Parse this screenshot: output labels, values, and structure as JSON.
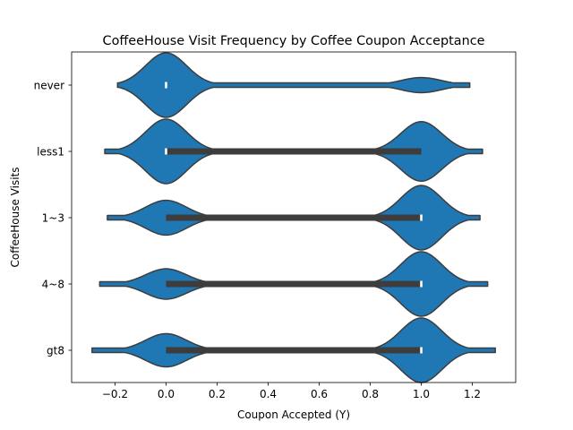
{
  "chart_data": {
    "type": "violin",
    "orientation": "horizontal",
    "title": "CoffeeHouse Visit Frequency by Coffee Coupon Acceptance",
    "xlabel": "Coupon Accepted (Y)",
    "ylabel": "CoffeeHouse Visits",
    "xlim": [
      -0.37,
      1.37
    ],
    "xticks": [
      -0.2,
      0.0,
      0.2,
      0.4,
      0.6,
      0.8,
      1.0,
      1.2
    ],
    "xtick_labels": [
      "−0.2",
      "0.0",
      "0.2",
      "0.4",
      "0.6",
      "0.8",
      "1.0",
      "1.2"
    ],
    "grid": false,
    "fill_color": "#1f77b4",
    "edge_color": "#3d3d3d",
    "categories": [
      "never",
      "less1",
      "1~3",
      "4~8",
      "gt8"
    ],
    "series": [
      {
        "category": "never",
        "q1": 0,
        "median": 0,
        "q3": 0,
        "range": [
          -0.19,
          1.19
        ],
        "share_accepted": 0.19
      },
      {
        "category": "less1",
        "q1": 0,
        "median": 0,
        "q3": 1,
        "range": [
          -0.24,
          1.24
        ],
        "share_accepted": 0.48
      },
      {
        "category": "1~3",
        "q1": 0,
        "median": 1,
        "q3": 1,
        "range": [
          -0.23,
          1.23
        ],
        "share_accepted": 0.65
      },
      {
        "category": "4~8",
        "q1": 0,
        "median": 1,
        "q3": 1,
        "range": [
          -0.26,
          1.26
        ],
        "share_accepted": 0.68
      },
      {
        "category": "gt8",
        "q1": 0,
        "median": 1,
        "q3": 1,
        "range": [
          -0.29,
          1.29
        ],
        "share_accepted": 0.66
      }
    ]
  }
}
